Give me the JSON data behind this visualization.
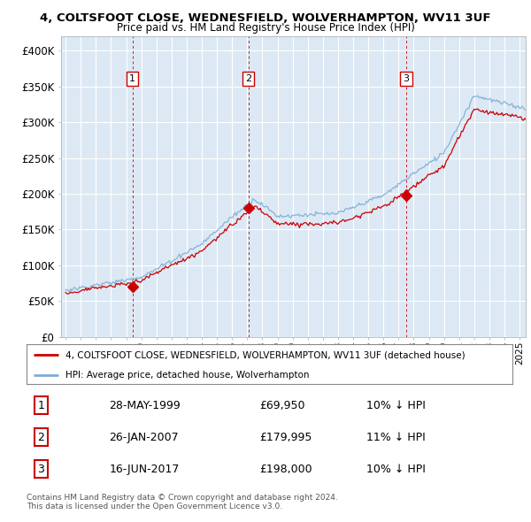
{
  "title1": "4, COLTSFOOT CLOSE, WEDNESFIELD, WOLVERHAMPTON, WV11 3UF",
  "title2": "Price paid vs. HM Land Registry's House Price Index (HPI)",
  "legend_line1": "4, COLTSFOOT CLOSE, WEDNESFIELD, WOLVERHAMPTON, WV11 3UF (detached house)",
  "legend_line2": "HPI: Average price, detached house, Wolverhampton",
  "sale1_label": "1",
  "sale1_date": "28-MAY-1999",
  "sale1_price": "£69,950",
  "sale1_hpi": "10% ↓ HPI",
  "sale2_label": "2",
  "sale2_date": "26-JAN-2007",
  "sale2_price": "£179,995",
  "sale2_hpi": "11% ↓ HPI",
  "sale3_label": "3",
  "sale3_date": "16-JUN-2017",
  "sale3_price": "£198,000",
  "sale3_hpi": "10% ↓ HPI",
  "copyright": "Contains HM Land Registry data © Crown copyright and database right 2024.\nThis data is licensed under the Open Government Licence v3.0.",
  "sale_color": "#cc0000",
  "hpi_color": "#7dadd4",
  "dashed_color": "#cc0000",
  "chart_bg": "#dce9f5",
  "background_color": "#ffffff",
  "grid_color": "#ffffff",
  "yticks": [
    0,
    50,
    100,
    150,
    200,
    250,
    300,
    350,
    400
  ],
  "ylim_low": 0,
  "ylim_high": 420000,
  "xlim_start": 1994.7,
  "xlim_end": 2025.4
}
